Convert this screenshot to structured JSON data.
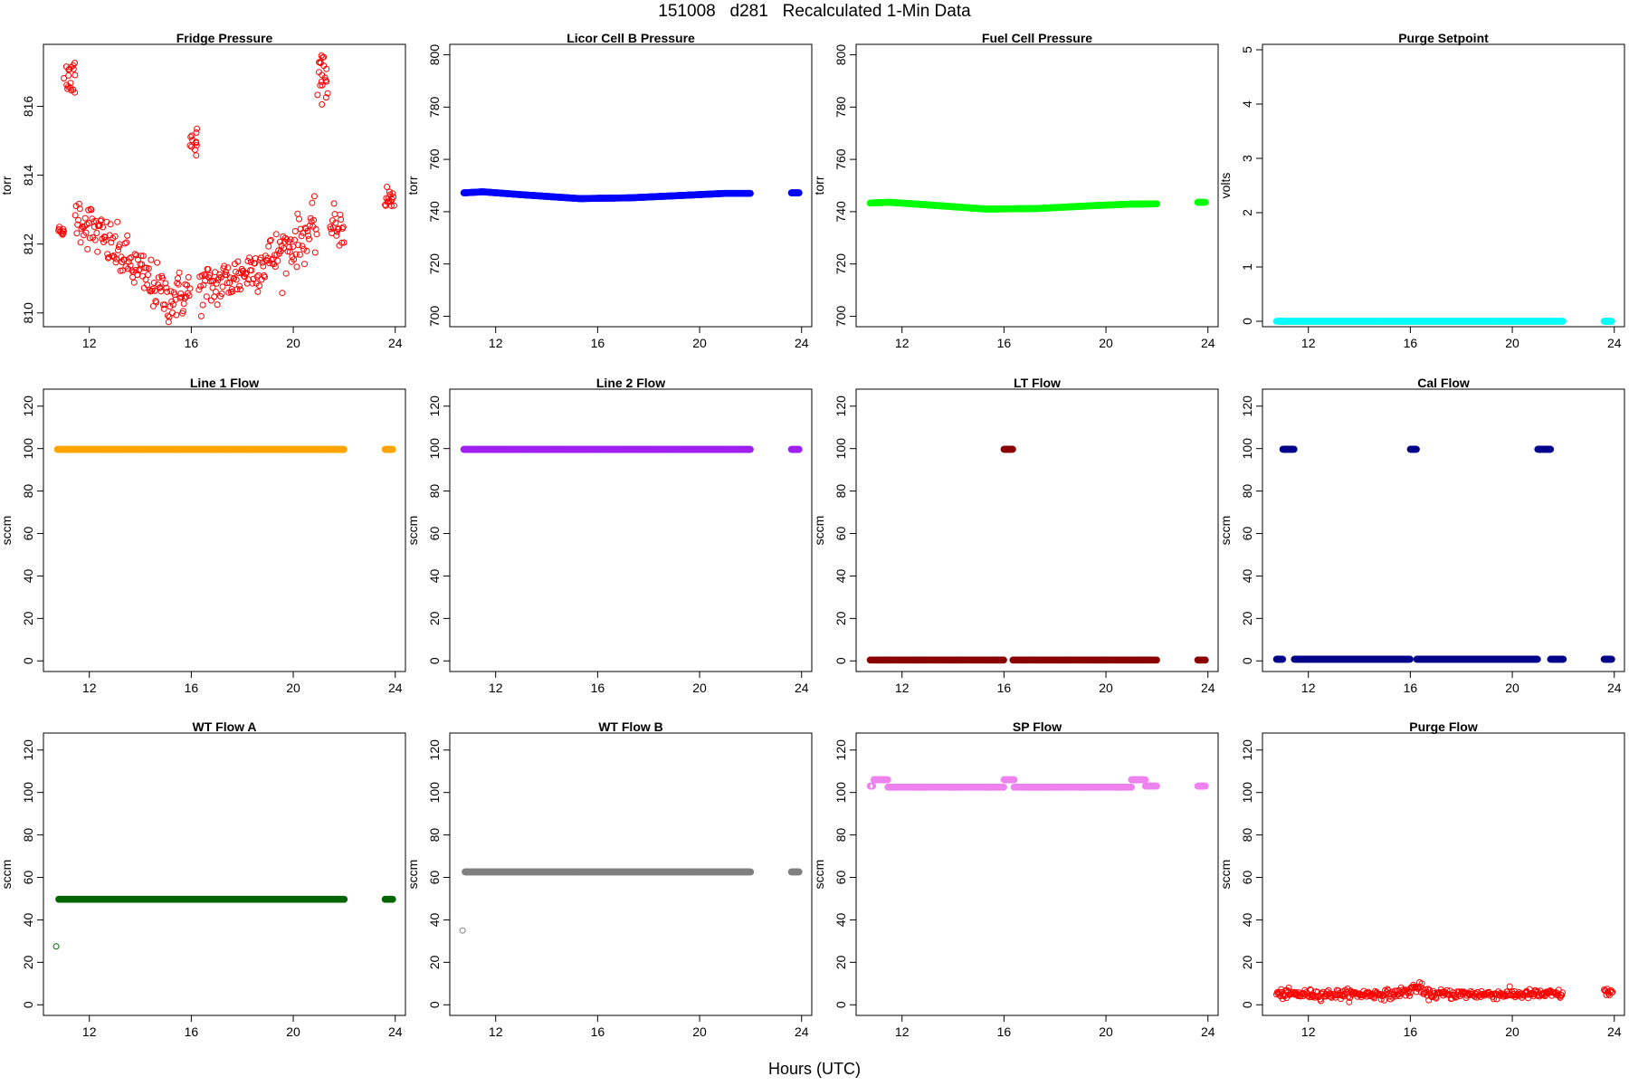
{
  "figure": {
    "title": "151008   d281   Recalculated 1-Min Data",
    "xlabel": "Hours (UTC)"
  },
  "chart_data": [
    {
      "type": "scatter",
      "title": "Fridge Pressure",
      "ylabel": "torr",
      "color": "#ff0000",
      "xlim": [
        10.2,
        24.4
      ],
      "ylim": [
        809.6,
        817.8
      ],
      "xticks": [
        12,
        16,
        20,
        24
      ],
      "yticks": [
        810,
        812,
        814,
        816
      ],
      "pattern": "fridge",
      "point_style": "open"
    },
    {
      "type": "scatter",
      "title": "Licor Cell B Pressure",
      "ylabel": "torr",
      "color": "#0000ff",
      "xlim": [
        10.2,
        24.4
      ],
      "ylim": [
        696,
        804
      ],
      "xticks": [
        12,
        16,
        20,
        24
      ],
      "yticks": [
        700,
        720,
        740,
        760,
        780,
        800
      ],
      "segments": [
        {
          "x": [
            10.75,
            11.5,
            13.0,
            15.3,
            17.3,
            19.5,
            21.0,
            22.0
          ],
          "y": [
            747.2,
            747.6,
            746.5,
            745.0,
            745.3,
            746.3,
            747.0,
            747.0
          ]
        },
        {
          "x": [
            23.6,
            23.9
          ],
          "y": [
            747.2,
            747.2
          ]
        }
      ],
      "point_style": "dense"
    },
    {
      "type": "scatter",
      "title": "Fuel Cell Pressure",
      "ylabel": "torr",
      "color": "#00ff00",
      "xlim": [
        10.2,
        24.4
      ],
      "ylim": [
        696,
        804
      ],
      "xticks": [
        12,
        16,
        20,
        24
      ],
      "yticks": [
        700,
        720,
        740,
        760,
        780,
        800
      ],
      "segments": [
        {
          "x": [
            10.75,
            11.5,
            13.0,
            15.3,
            17.3,
            19.5,
            21.0,
            22.0
          ],
          "y": [
            743.3,
            743.6,
            742.6,
            741.0,
            741.2,
            742.3,
            742.9,
            743.0
          ]
        },
        {
          "x": [
            23.6,
            23.9
          ],
          "y": [
            743.6,
            743.6
          ]
        }
      ],
      "point_style": "dense"
    },
    {
      "type": "scatter",
      "title": "Purge Setpoint",
      "ylabel": "volts",
      "color": "#00ffff",
      "xlim": [
        10.2,
        24.4
      ],
      "ylim": [
        -0.1,
        5.1
      ],
      "xticks": [
        12,
        16,
        20,
        24
      ],
      "yticks": [
        0,
        1,
        2,
        3,
        4,
        5
      ],
      "segments": [
        {
          "x": [
            10.75,
            22.0
          ],
          "y": [
            0,
            0
          ]
        },
        {
          "x": [
            23.6,
            23.9
          ],
          "y": [
            0,
            0
          ]
        }
      ],
      "point_style": "dense"
    },
    {
      "type": "scatter",
      "title": "Line 1 Flow",
      "ylabel": "sccm",
      "color": "#ffa500",
      "xlim": [
        10.2,
        24.4
      ],
      "ylim": [
        -5,
        128
      ],
      "xticks": [
        12,
        16,
        20,
        24
      ],
      "yticks": [
        0,
        20,
        40,
        60,
        80,
        100,
        120
      ],
      "segments": [
        {
          "x": [
            10.75,
            22.0
          ],
          "y": [
            99.6,
            99.6
          ]
        },
        {
          "x": [
            23.6,
            23.9
          ],
          "y": [
            99.6,
            99.6
          ]
        }
      ],
      "point_style": "dense"
    },
    {
      "type": "scatter",
      "title": "Line 2 Flow",
      "ylabel": "sccm",
      "color": "#a020f0",
      "xlim": [
        10.2,
        24.4
      ],
      "ylim": [
        -5,
        128
      ],
      "xticks": [
        12,
        16,
        20,
        24
      ],
      "yticks": [
        0,
        20,
        40,
        60,
        80,
        100,
        120
      ],
      "segments": [
        {
          "x": [
            10.75,
            22.0
          ],
          "y": [
            99.6,
            99.6
          ]
        },
        {
          "x": [
            23.6,
            23.9
          ],
          "y": [
            99.6,
            99.6
          ]
        }
      ],
      "point_style": "dense"
    },
    {
      "type": "scatter",
      "title": "LT Flow",
      "ylabel": "sccm",
      "color": "#8b0000",
      "xlim": [
        10.2,
        24.4
      ],
      "ylim": [
        -5,
        128
      ],
      "xticks": [
        12,
        16,
        20,
        24
      ],
      "yticks": [
        0,
        20,
        40,
        60,
        80,
        100,
        120
      ],
      "segments": [
        {
          "x": [
            10.75,
            16.0
          ],
          "y": [
            0.4,
            0.4
          ]
        },
        {
          "x": [
            16.0,
            16.35
          ],
          "y": [
            99.7,
            99.7
          ]
        },
        {
          "x": [
            16.35,
            22.0
          ],
          "y": [
            0.4,
            0.4
          ]
        },
        {
          "x": [
            23.6,
            23.9
          ],
          "y": [
            0.4,
            0.4
          ]
        }
      ],
      "point_style": "dense"
    },
    {
      "type": "scatter",
      "title": "Cal Flow",
      "ylabel": "sccm",
      "color": "#00008b",
      "xlim": [
        10.2,
        24.4
      ],
      "ylim": [
        -5,
        128
      ],
      "xticks": [
        12,
        16,
        20,
        24
      ],
      "yticks": [
        0,
        20,
        40,
        60,
        80,
        100,
        120
      ],
      "segments": [
        {
          "x": [
            10.75,
            11.0
          ],
          "y": [
            0.8,
            0.8
          ]
        },
        {
          "x": [
            11.0,
            11.45
          ],
          "y": [
            99.7,
            99.7
          ]
        },
        {
          "x": [
            11.45,
            16.0
          ],
          "y": [
            0.8,
            0.8
          ]
        },
        {
          "x": [
            16.0,
            16.25
          ],
          "y": [
            99.7,
            99.7
          ]
        },
        {
          "x": [
            16.25,
            21.0
          ],
          "y": [
            0.8,
            0.8
          ]
        },
        {
          "x": [
            21.0,
            21.5
          ],
          "y": [
            99.7,
            99.7
          ]
        },
        {
          "x": [
            21.5,
            22.0
          ],
          "y": [
            0.8,
            0.8
          ]
        },
        {
          "x": [
            23.6,
            23.9
          ],
          "y": [
            0.8,
            0.8
          ]
        }
      ],
      "point_style": "dense"
    },
    {
      "type": "scatter",
      "title": "WT Flow A",
      "ylabel": "sccm",
      "color": "#006400",
      "xlim": [
        10.2,
        24.4
      ],
      "ylim": [
        -5,
        128
      ],
      "xticks": [
        12,
        16,
        20,
        24
      ],
      "yticks": [
        0,
        20,
        40,
        60,
        80,
        100,
        120
      ],
      "segments": [
        {
          "x": [
            10.8,
            22.0
          ],
          "y": [
            49.7,
            49.7
          ]
        },
        {
          "x": [
            23.6,
            23.9
          ],
          "y": [
            49.7,
            49.7
          ]
        }
      ],
      "outliers": [
        {
          "x": 10.7,
          "y": 27.5
        }
      ],
      "point_style": "dense"
    },
    {
      "type": "scatter",
      "title": "WT Flow B",
      "ylabel": "sccm",
      "color": "#808080",
      "xlim": [
        10.2,
        24.4
      ],
      "ylim": [
        -5,
        128
      ],
      "xticks": [
        12,
        16,
        20,
        24
      ],
      "yticks": [
        0,
        20,
        40,
        60,
        80,
        100,
        120
      ],
      "segments": [
        {
          "x": [
            10.8,
            22.0
          ],
          "y": [
            62.6,
            62.6
          ]
        },
        {
          "x": [
            23.6,
            23.9
          ],
          "y": [
            62.6,
            62.6
          ]
        }
      ],
      "outliers": [
        {
          "x": 10.7,
          "y": 35.0
        }
      ],
      "point_style": "dense"
    },
    {
      "type": "scatter",
      "title": "SP Flow",
      "ylabel": "sccm",
      "color": "#ee82ee",
      "xlim": [
        10.2,
        24.4
      ],
      "ylim": [
        -5,
        128
      ],
      "xticks": [
        12,
        16,
        20,
        24
      ],
      "yticks": [
        0,
        20,
        40,
        60,
        80,
        100,
        120
      ],
      "segments": [
        {
          "x": [
            10.75,
            10.85
          ],
          "y": [
            103.0,
            103.0
          ]
        },
        {
          "x": [
            10.9,
            11.45
          ],
          "y": [
            106.0,
            106.0
          ]
        },
        {
          "x": [
            11.45,
            16.0
          ],
          "y": [
            102.5,
            102.5
          ]
        },
        {
          "x": [
            16.0,
            16.4
          ],
          "y": [
            106.0,
            106.0
          ]
        },
        {
          "x": [
            16.4,
            21.0
          ],
          "y": [
            102.5,
            102.5
          ]
        },
        {
          "x": [
            21.0,
            21.55
          ],
          "y": [
            106.0,
            106.0
          ]
        },
        {
          "x": [
            21.55,
            22.0
          ],
          "y": [
            103.0,
            103.0
          ]
        },
        {
          "x": [
            23.6,
            23.9
          ],
          "y": [
            103.0,
            103.0
          ]
        }
      ],
      "point_style": "dense"
    },
    {
      "type": "scatter",
      "title": "Purge Flow",
      "ylabel": "sccm",
      "color": "#ff0000",
      "xlim": [
        10.2,
        24.4
      ],
      "ylim": [
        -5,
        128
      ],
      "xticks": [
        12,
        16,
        20,
        24
      ],
      "yticks": [
        0,
        20,
        40,
        60,
        80,
        100,
        120
      ],
      "pattern": "purge",
      "point_style": "open"
    }
  ]
}
